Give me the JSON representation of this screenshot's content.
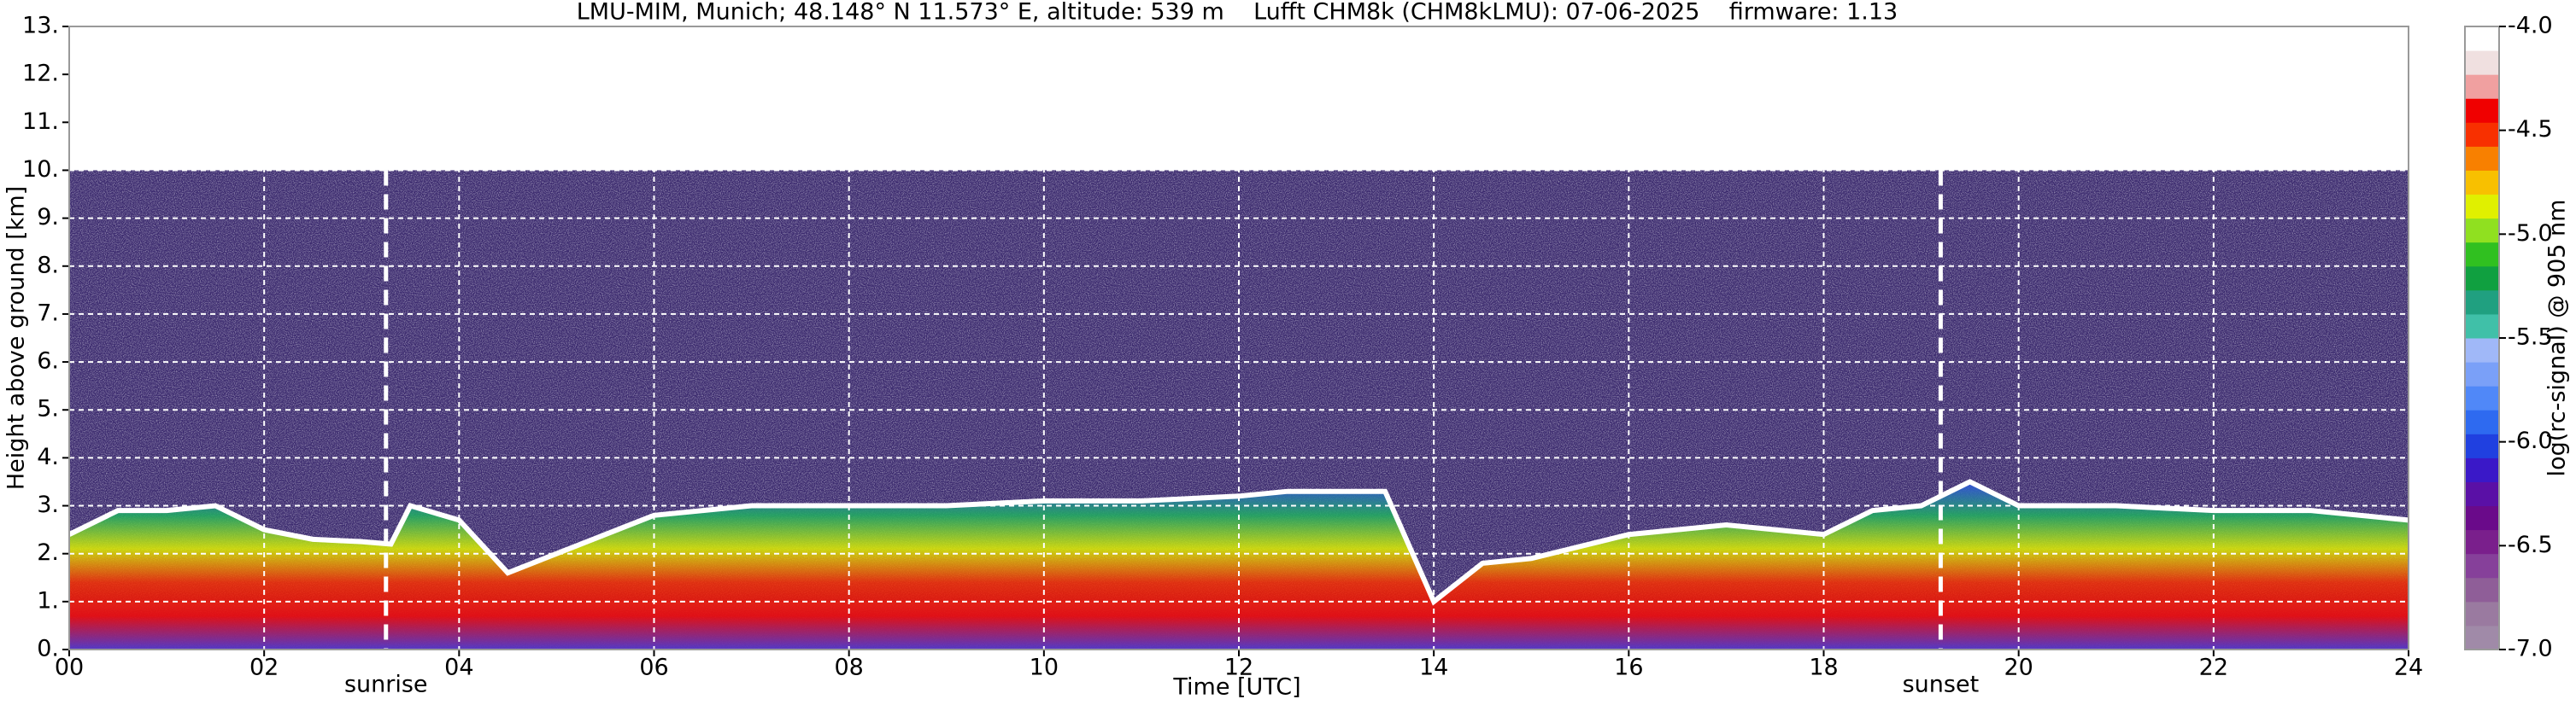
{
  "chart_data": {
    "type": "line",
    "title": "LMU-MIM, Munich; 48.148° N 11.573° E, altitude: 539 m    Lufft CHM8k (CHM8kLMU): 07-06-2025    firmware: 1.13",
    "xlabel": "Time [UTC]",
    "ylabel": "Height above ground [km]",
    "xlim": [
      0,
      24
    ],
    "ylim": [
      0,
      13
    ],
    "xticks": [
      {
        "value": 0,
        "label": "00"
      },
      {
        "value": 2,
        "label": "02"
      },
      {
        "value": 4,
        "label": "04"
      },
      {
        "value": 6,
        "label": "06"
      },
      {
        "value": 8,
        "label": "08"
      },
      {
        "value": 10,
        "label": "10"
      },
      {
        "value": 12,
        "label": "12"
      },
      {
        "value": 14,
        "label": "14"
      },
      {
        "value": 16,
        "label": "16"
      },
      {
        "value": 18,
        "label": "18"
      },
      {
        "value": 20,
        "label": "20"
      },
      {
        "value": 22,
        "label": "22"
      },
      {
        "value": 24,
        "label": "24"
      }
    ],
    "yticks": [
      {
        "value": 0,
        "label": "0."
      },
      {
        "value": 1,
        "label": "1."
      },
      {
        "value": 2,
        "label": "2."
      },
      {
        "value": 3,
        "label": "3."
      },
      {
        "value": 4,
        "label": "4."
      },
      {
        "value": 5,
        "label": "5."
      },
      {
        "value": 6,
        "label": "6."
      },
      {
        "value": 7,
        "label": "7."
      },
      {
        "value": 8,
        "label": "8."
      },
      {
        "value": 9,
        "label": "9."
      },
      {
        "value": 10,
        "label": "10."
      },
      {
        "value": 11,
        "label": "11."
      },
      {
        "value": 12,
        "label": "12."
      },
      {
        "value": 13,
        "label": "13."
      }
    ],
    "grid": true,
    "signal_top": 10,
    "x": [
      0,
      0.5,
      1,
      1.5,
      2,
      2.5,
      3,
      3.3,
      3.5,
      4,
      4.5,
      5,
      6,
      7,
      8,
      9,
      10,
      11,
      12,
      12.5,
      13,
      13.5,
      14,
      14.5,
      15,
      16,
      17,
      18,
      18.5,
      19,
      19.5,
      20,
      21,
      22,
      23,
      24
    ],
    "series": [
      {
        "color": "#ffffff",
        "values": [
          2.4,
          2.9,
          2.9,
          3.0,
          2.5,
          2.3,
          2.25,
          2.2,
          3.0,
          2.7,
          1.6,
          2.0,
          2.8,
          3.0,
          3.0,
          3.0,
          3.1,
          3.1,
          3.2,
          3.3,
          3.3,
          3.3,
          1.0,
          1.8,
          1.9,
          2.4,
          2.6,
          2.4,
          2.9,
          3.0,
          3.5,
          3.0,
          3.0,
          2.9,
          2.9,
          2.7
        ]
      }
    ],
    "annotations": [
      {
        "label": "sunrise",
        "x": 3.25
      },
      {
        "label": "sunset",
        "x": 19.2
      }
    ],
    "colorbar": {
      "label": "log(rc-signal) @ 905 nm",
      "lim": [
        -7,
        -4
      ],
      "ticks": [
        {
          "value": -7,
          "label": "-7.0"
        },
        -6.5,
        {
          "value": -6,
          "label": "-6.0"
        },
        -5.5,
        {
          "value": -5,
          "label": "-5.0"
        },
        -4.5,
        {
          "value": -4,
          "label": "-4.0"
        }
      ],
      "colors": [
        "#a08aa8",
        "#9a7aa0",
        "#8f5e98",
        "#86409a",
        "#7a1f8c",
        "#6a0a8a",
        "#5a10a6",
        "#3a18c8",
        "#2040e0",
        "#2e6af0",
        "#5088f8",
        "#7aa0f8",
        "#a0b8f8",
        "#40c0a8",
        "#20a080",
        "#10a040",
        "#30c020",
        "#90e020",
        "#e0f000",
        "#f8c000",
        "#f88000",
        "#f83000",
        "#f00000",
        "#f0a0a0",
        "#f0e0e0",
        "#ffffff"
      ]
    }
  }
}
